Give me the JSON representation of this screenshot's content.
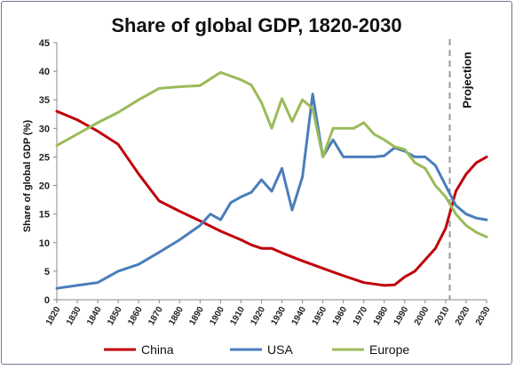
{
  "chart_data": {
    "type": "line",
    "title": "Share of global GDP, 1820-2030",
    "xlabel": "",
    "ylabel": "Share of global GDP (%)",
    "xlim": [
      1820,
      2030
    ],
    "ylim": [
      0,
      45
    ],
    "yticks": [
      0,
      5,
      10,
      15,
      20,
      25,
      30,
      35,
      40,
      45
    ],
    "xticks": [
      1820,
      1830,
      1840,
      1850,
      1860,
      1870,
      1880,
      1890,
      1900,
      1910,
      1920,
      1930,
      1940,
      1950,
      1960,
      1970,
      1980,
      1990,
      2000,
      2010,
      2020,
      2030
    ],
    "grid": false,
    "legend_position": "bottom",
    "annotation": {
      "text": "Projection",
      "x": 2012
    },
    "series": [
      {
        "name": "China",
        "color": "#c0000b",
        "points": [
          [
            1820,
            33
          ],
          [
            1830,
            31.5
          ],
          [
            1840,
            29.5
          ],
          [
            1850,
            27.2
          ],
          [
            1860,
            22
          ],
          [
            1870,
            17.3
          ],
          [
            1880,
            15.5
          ],
          [
            1890,
            13.8
          ],
          [
            1900,
            12
          ],
          [
            1910,
            10.5
          ],
          [
            1915,
            9.6
          ],
          [
            1920,
            9
          ],
          [
            1925,
            9
          ],
          [
            1930,
            8.2
          ],
          [
            1935,
            7.5
          ],
          [
            1940,
            6.8
          ],
          [
            1950,
            5.5
          ],
          [
            1960,
            4.2
          ],
          [
            1970,
            3
          ],
          [
            1980,
            2.5
          ],
          [
            1985,
            2.6
          ],
          [
            1990,
            4
          ],
          [
            1995,
            5
          ],
          [
            2000,
            7
          ],
          [
            2005,
            9
          ],
          [
            2010,
            12.5
          ],
          [
            2015,
            19
          ],
          [
            2020,
            22
          ],
          [
            2025,
            24
          ],
          [
            2030,
            25
          ]
        ]
      },
      {
        "name": "USA",
        "color": "#4a7ebb",
        "points": [
          [
            1820,
            2
          ],
          [
            1830,
            2.5
          ],
          [
            1840,
            3
          ],
          [
            1850,
            5
          ],
          [
            1860,
            6.2
          ],
          [
            1870,
            8.3
          ],
          [
            1880,
            10.5
          ],
          [
            1890,
            13
          ],
          [
            1895,
            15
          ],
          [
            1900,
            14
          ],
          [
            1905,
            17
          ],
          [
            1910,
            18
          ],
          [
            1915,
            18.8
          ],
          [
            1920,
            21
          ],
          [
            1925,
            19
          ],
          [
            1930,
            23
          ],
          [
            1935,
            15.7
          ],
          [
            1940,
            21.5
          ],
          [
            1945,
            36
          ],
          [
            1950,
            25
          ],
          [
            1955,
            28
          ],
          [
            1960,
            25
          ],
          [
            1970,
            25
          ],
          [
            1975,
            25
          ],
          [
            1980,
            25.2
          ],
          [
            1985,
            26.6
          ],
          [
            1990,
            26
          ],
          [
            1995,
            25
          ],
          [
            2000,
            25
          ],
          [
            2005,
            23.5
          ],
          [
            2010,
            20
          ],
          [
            2015,
            16.5
          ],
          [
            2020,
            15
          ],
          [
            2025,
            14.3
          ],
          [
            2030,
            14
          ]
        ]
      },
      {
        "name": "Europe",
        "color": "#9bbb59",
        "points": [
          [
            1820,
            27
          ],
          [
            1830,
            29
          ],
          [
            1840,
            31
          ],
          [
            1850,
            32.8
          ],
          [
            1860,
            35
          ],
          [
            1870,
            37
          ],
          [
            1880,
            37.3
          ],
          [
            1890,
            37.5
          ],
          [
            1900,
            39.8
          ],
          [
            1910,
            38.5
          ],
          [
            1915,
            37.6
          ],
          [
            1920,
            34.5
          ],
          [
            1925,
            30
          ],
          [
            1930,
            35.2
          ],
          [
            1935,
            31.2
          ],
          [
            1940,
            35
          ],
          [
            1945,
            33.5
          ],
          [
            1950,
            25
          ],
          [
            1955,
            30
          ],
          [
            1960,
            30
          ],
          [
            1965,
            30
          ],
          [
            1970,
            31
          ],
          [
            1975,
            29
          ],
          [
            1980,
            28
          ],
          [
            1985,
            26.8
          ],
          [
            1990,
            26.3
          ],
          [
            1995,
            24
          ],
          [
            2000,
            23
          ],
          [
            2005,
            20
          ],
          [
            2010,
            18
          ],
          [
            2015,
            15
          ],
          [
            2020,
            13
          ],
          [
            2025,
            11.8
          ],
          [
            2030,
            11
          ]
        ]
      }
    ]
  }
}
